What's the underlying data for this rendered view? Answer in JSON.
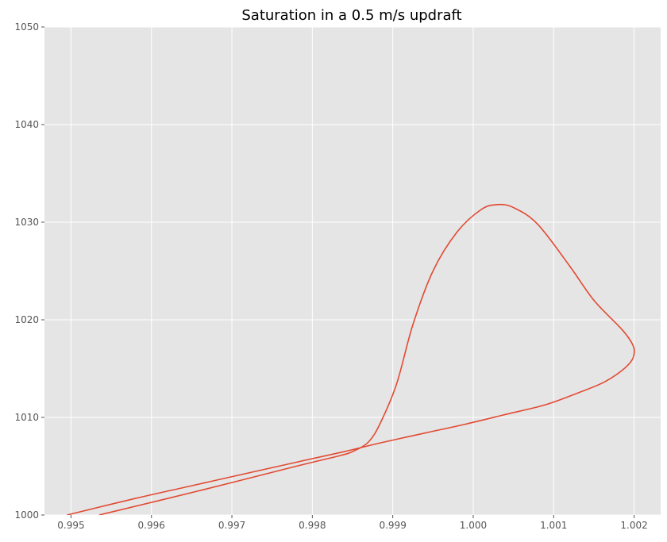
{
  "chart_data": {
    "type": "line",
    "title": "Saturation in a 0.5 m/s updraft",
    "xlabel": "",
    "ylabel": "",
    "xlim": [
      0.99467,
      1.00233
    ],
    "ylim": [
      1000,
      1050
    ],
    "xticks": [
      0.995,
      0.996,
      0.997,
      0.998,
      0.999,
      1.0,
      1.001,
      1.002
    ],
    "xtick_labels": [
      "0.995",
      "0.996",
      "0.997",
      "0.998",
      "0.999",
      "1.000",
      "1.001",
      "1.002"
    ],
    "yticks": [
      1000,
      1010,
      1020,
      1030,
      1040,
      1050
    ],
    "ytick_labels": [
      "1000",
      "1010",
      "1020",
      "1030",
      "1040",
      "1050"
    ],
    "grid": true,
    "series": [
      {
        "color": "#e24a33",
        "x": [
          0.99535,
          0.9966,
          0.9978,
          0.99835,
          0.9985,
          0.9987,
          0.99885,
          0.99905,
          0.99925,
          0.9995,
          0.9998,
          1.0001,
          1.0003,
          1.0005,
          1.0008,
          1.0012,
          1.0015,
          1.00185,
          1.00198,
          1.002,
          1.00195,
          1.0018,
          1.0016,
          1.0013,
          1.0009,
          1.0004,
          0.9999,
          0.9994,
          0.99885,
          0.9984,
          0.99785,
          0.9972,
          0.9965,
          0.9958,
          0.99495
        ],
        "y": [
          1000,
          1002.5,
          1005.0,
          1006.1,
          1006.5,
          1007.5,
          1009.5,
          1013.5,
          1019.5,
          1025.0,
          1029.0,
          1031.3,
          1031.8,
          1031.5,
          1029.8,
          1025.5,
          1022.0,
          1019.0,
          1017.5,
          1016.5,
          1015.6,
          1014.5,
          1013.5,
          1012.5,
          1011.3,
          1010.3,
          1009.3,
          1008.4,
          1007.4,
          1006.5,
          1005.5,
          1004.3,
          1003.0,
          1001.7,
          1000
        ]
      }
    ]
  },
  "style": {
    "panel_bg": "#e5e5e5",
    "grid_color": "#ffffff",
    "line_color": "#e24a33",
    "tick_color": "#555555"
  }
}
